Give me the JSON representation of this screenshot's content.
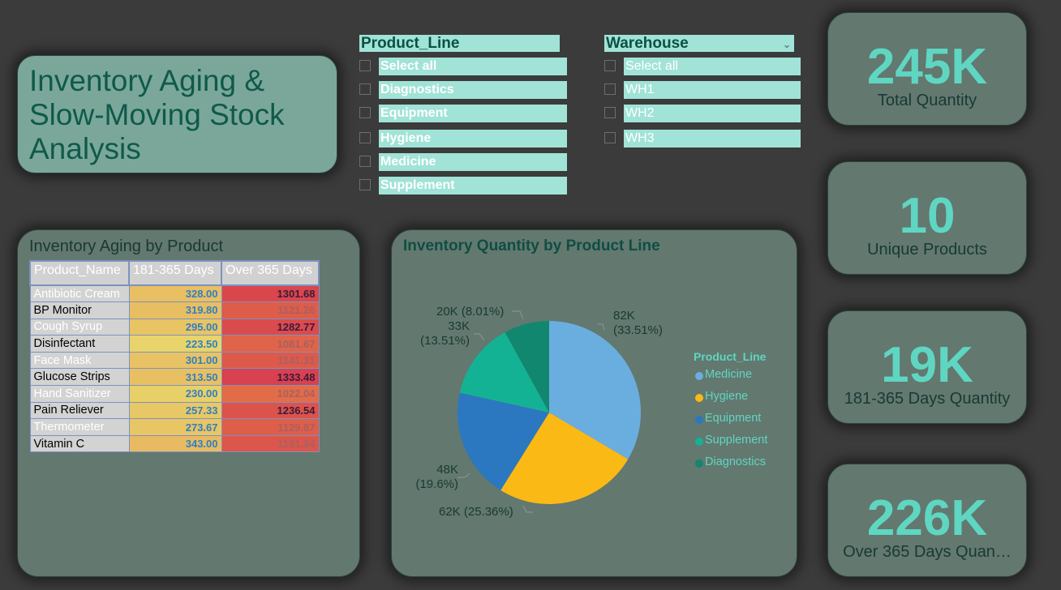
{
  "title": "Inventory Aging & Slow-Moving Stock Analysis",
  "slicers": {
    "product_line": {
      "header": "Product_Line",
      "items": [
        "Select all",
        "Diagnostics",
        "Equipment",
        "Hygiene",
        "Medicine",
        "Supplement"
      ]
    },
    "warehouse": {
      "header": "Warehouse",
      "items": [
        "Select all",
        "WH1",
        "WH2",
        "WH3"
      ]
    }
  },
  "kpis": [
    {
      "value": "245K",
      "label": "Total Quantity"
    },
    {
      "value": "10",
      "label": "Unique Products"
    },
    {
      "value": "19K",
      "label": "181-365 Days Quantity"
    },
    {
      "value": "226K",
      "label": "Over 365 Days Quan…"
    }
  ],
  "aging_table": {
    "title": "Inventory Aging by Product",
    "columns": [
      "Product_Name",
      "181-365 Days",
      "Over 365 Days"
    ],
    "rows": [
      [
        "Antibiotic Cream",
        "328.00",
        "1301.68"
      ],
      [
        "BP Monitor",
        "319.80",
        "1121.26"
      ],
      [
        "Cough Syrup",
        "295.00",
        "1282.77"
      ],
      [
        "Disinfectant",
        "223.50",
        "1081.67"
      ],
      [
        "Face Mask",
        "301.00",
        "1141.31"
      ],
      [
        "Glucose Strips",
        "313.50",
        "1333.48"
      ],
      [
        "Hand Sanitizer",
        "230.00",
        "1022.04"
      ],
      [
        "Pain Reliever",
        "257.33",
        "1236.54"
      ],
      [
        "Thermometer",
        "273.67",
        "1129.87"
      ],
      [
        "Vitamin C",
        "343.00",
        "1191.94"
      ]
    ],
    "colors_d1": [
      "#e8bf63",
      "#e8be63",
      "#e8c465",
      "#e8d46a",
      "#e8c264",
      "#e8c063",
      "#e8d068",
      "#e8c866",
      "#e8c565",
      "#e8bb62"
    ],
    "colors_d2": [
      "#d9474d",
      "#de5c4a",
      "#da4b4d",
      "#e0644a",
      "#dd5a4b",
      "#d8414f",
      "#e36c48",
      "#dc534c",
      "#df5e4a",
      "#dd564b"
    ],
    "text_d2": [
      "#3b1a3b",
      "#a86060",
      "#3b1a3b",
      "#a86060",
      "#a86060",
      "#3b1a3b",
      "#a86060",
      "#3b1a3b",
      "#a86060",
      "#a86060"
    ]
  },
  "chart_data": {
    "type": "pie",
    "title": "Inventory Quantity by Product Line",
    "legend_title": "Product_Line",
    "legend_position": "right",
    "slices": [
      {
        "name": "Medicine",
        "value": 82,
        "pct": 33.51,
        "label": "82K\n(33.51%)",
        "color": "#6aaee0"
      },
      {
        "name": "Hygiene",
        "value": 62,
        "pct": 25.36,
        "label": "62K (25.36%)",
        "color": "#fbb916"
      },
      {
        "name": "Equipment",
        "value": 48,
        "pct": 19.6,
        "label": "48K\n(19.6%)",
        "color": "#2b78c0"
      },
      {
        "name": "Supplement",
        "value": 33,
        "pct": 13.51,
        "label": "33K\n(13.51%)",
        "color": "#14b295"
      },
      {
        "name": "Diagnostics",
        "value": 20,
        "pct": 8.01,
        "label": "20K (8.01%)",
        "color": "#12876f"
      }
    ]
  }
}
